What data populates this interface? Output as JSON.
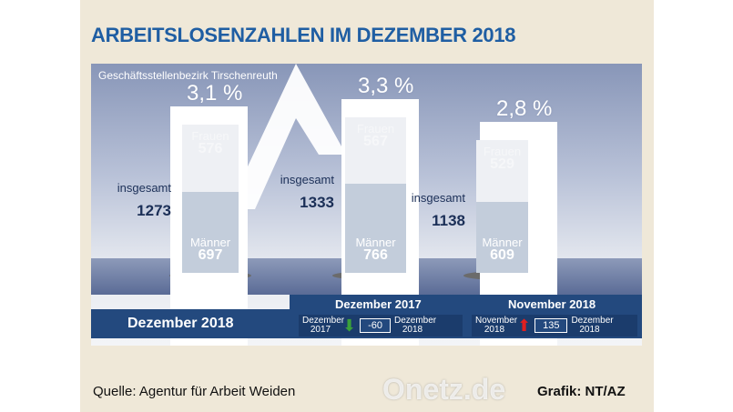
{
  "title": "ARBEITSLOSENZAHLEN IM DEZEMBER 2018",
  "subtitle": "Geschäftsstellenbezirk Tirschenreuth",
  "chart_data": {
    "type": "bar",
    "stacked": true,
    "categories": [
      "Dezember 2018",
      "Dezember 2017",
      "November 2018"
    ],
    "series": [
      {
        "name": "Männer",
        "values": [
          697,
          766,
          609
        ]
      },
      {
        "name": "Frauen",
        "values": [
          576,
          567,
          529
        ]
      }
    ],
    "totals_label": "insgesamt",
    "totals": [
      1273,
      1333,
      1138
    ],
    "rates": [
      "3,1 %",
      "3,3 %",
      "2,8 %"
    ],
    "colors": {
      "men": "#c3cddb",
      "women": "#eef0f4"
    }
  },
  "bottom": {
    "current": "Dezember 2018",
    "comparisons": [
      {
        "header": "Dezember 2017",
        "from": "Dezember 2017",
        "change": "-60",
        "direction": "down",
        "color": "#3aa03a",
        "to": "Dezember 2018"
      },
      {
        "header": "November 2018",
        "from": "November 2018",
        "change": "135",
        "direction": "up",
        "color": "#e02020",
        "to": "Dezember 2018"
      }
    ]
  },
  "footer": {
    "source": "Quelle: Agentur für Arbeit Weiden",
    "graphic": "Grafik: NT/AZ"
  },
  "watermark": "Onetz.de"
}
